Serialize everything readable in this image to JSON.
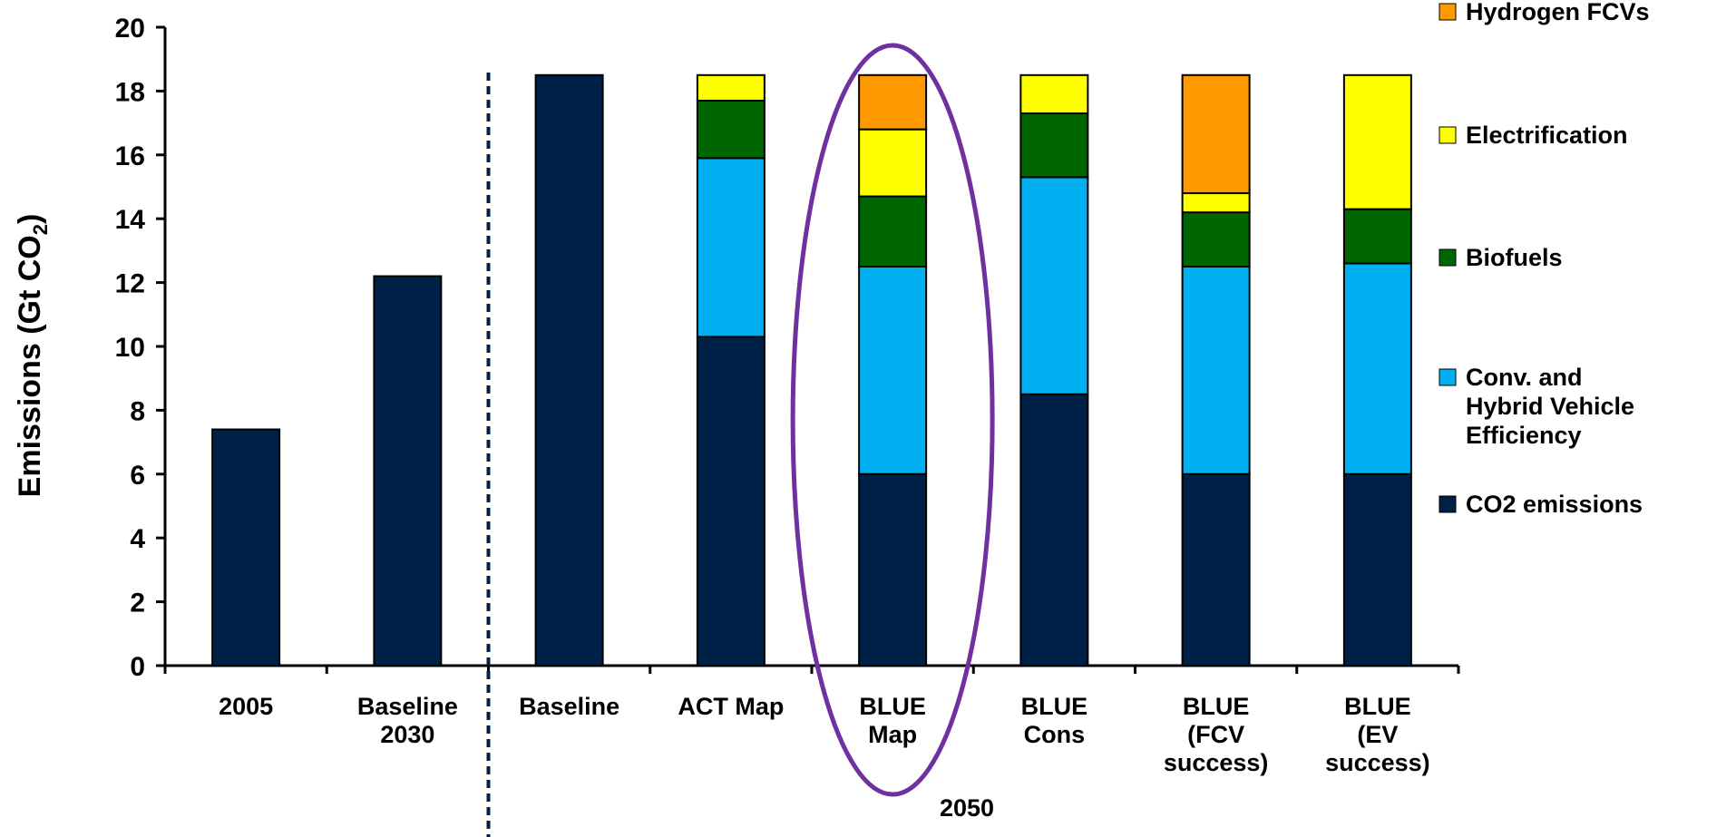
{
  "chart_data": {
    "type": "bar",
    "stacked": true,
    "ylabel": "Emissions (Gt CO",
    "ylabel_sub": "2",
    "ylabel_close": ")",
    "ylim": [
      0,
      20
    ],
    "yticks": [
      0,
      2,
      4,
      6,
      8,
      10,
      12,
      14,
      16,
      18,
      20
    ],
    "categories": [
      [
        "2005"
      ],
      [
        "Baseline",
        "2030"
      ],
      [
        "Baseline"
      ],
      [
        "ACT Map"
      ],
      [
        "BLUE",
        "Map"
      ],
      [
        "BLUE",
        "Cons"
      ],
      [
        "BLUE",
        "(FCV",
        "success)"
      ],
      [
        "BLUE",
        "(EV",
        "success)"
      ]
    ],
    "series": [
      {
        "name": "CO2 emissions",
        "color": "#002147",
        "values": [
          7.4,
          12.2,
          18.5,
          10.3,
          6.0,
          8.5,
          6.0,
          6.0
        ]
      },
      {
        "name": "Conv. and Hybrid Vehicle Efficiency",
        "color": "#00B0F0",
        "values": [
          0,
          0,
          0,
          5.6,
          6.5,
          6.8,
          6.5,
          6.6
        ]
      },
      {
        "name": "Biofuels",
        "color": "#006600",
        "values": [
          0,
          0,
          0,
          1.8,
          2.2,
          2.0,
          1.7,
          1.7
        ]
      },
      {
        "name": "Electrification",
        "color": "#FFFF00",
        "values": [
          0,
          0,
          0,
          0.8,
          2.1,
          1.2,
          0.6,
          4.2
        ]
      },
      {
        "name": "Hydrogen FCVs",
        "color": "#FF9900",
        "values": [
          0,
          0,
          0,
          0,
          1.7,
          0,
          3.7,
          0
        ]
      }
    ],
    "legend": [
      {
        "lines": [
          "Hydrogen FCVs"
        ],
        "color": "#FF9900"
      },
      {
        "lines": [
          "Electrification"
        ],
        "color": "#FFFF00"
      },
      {
        "lines": [
          "Biofuels"
        ],
        "color": "#006600"
      },
      {
        "lines": [
          "Conv. and",
          "Hybrid Vehicle",
          "Efficiency"
        ],
        "color": "#00B0F0"
      },
      {
        "lines": [
          "CO2 emissions"
        ],
        "color": "#002147"
      }
    ],
    "legend_position": "right",
    "group_label": "2050",
    "highlight": {
      "category_index": 4,
      "color": "#7030A0"
    },
    "divider_after_category": 1,
    "divider_color": "#002147"
  }
}
